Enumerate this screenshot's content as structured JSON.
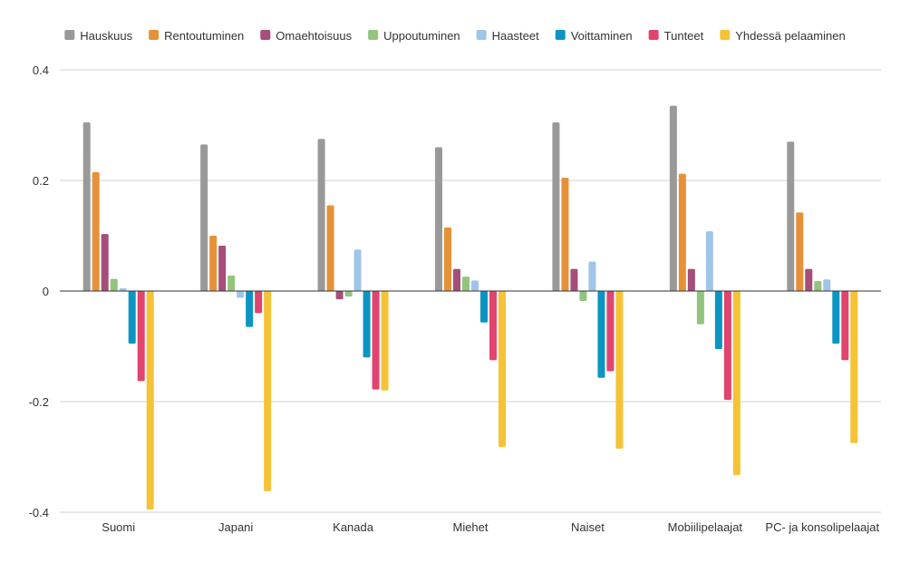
{
  "chart_data": {
    "type": "bar",
    "title": "",
    "xlabel": "",
    "ylabel": "",
    "ylim": [
      -0.4,
      0.4
    ],
    "yticks": [
      0.4,
      0.2,
      0,
      -0.2,
      -0.4
    ],
    "ytick_labels": [
      "0.4",
      "0.2",
      "0",
      "-0.2",
      "-0.4"
    ],
    "grid": true,
    "legend_position": "top",
    "categories": [
      "Suomi",
      "Japani",
      "Kanada",
      "Miehet",
      "Naiset",
      "Mobiilipelaajat",
      "PC- ja konsolipelaajat"
    ],
    "series": [
      {
        "name": "Hauskuus",
        "color": "#999999",
        "values": [
          0.305,
          0.265,
          0.275,
          0.26,
          0.305,
          0.335,
          0.27
        ]
      },
      {
        "name": "Rentoutuminen",
        "color": "#e69138",
        "values": [
          0.215,
          0.1,
          0.155,
          0.115,
          0.205,
          0.212,
          0.142
        ]
      },
      {
        "name": "Omaehtoisuus",
        "color": "#a64d79",
        "values": [
          0.103,
          0.082,
          -0.015,
          0.04,
          0.04,
          0.04,
          0.04
        ]
      },
      {
        "name": "Uppoutuminen",
        "color": "#93c47d",
        "values": [
          0.022,
          0.028,
          -0.01,
          0.026,
          -0.018,
          -0.06,
          0.018
        ]
      },
      {
        "name": "Haasteet",
        "color": "#9fc5e8",
        "values": [
          0.005,
          -0.012,
          0.075,
          0.019,
          0.053,
          0.108,
          0.021
        ]
      },
      {
        "name": "Voittaminen",
        "color": "#0b95c2",
        "values": [
          -0.095,
          -0.065,
          -0.12,
          -0.057,
          -0.157,
          -0.105,
          -0.095
        ]
      },
      {
        "name": "Tunteet",
        "color": "#e0446f",
        "values": [
          -0.163,
          -0.04,
          -0.178,
          -0.125,
          -0.145,
          -0.197,
          -0.125
        ]
      },
      {
        "name": "Yhdessä pelaaminen",
        "color": "#f6c337",
        "values": [
          -0.395,
          -0.362,
          -0.18,
          -0.282,
          -0.285,
          -0.333,
          -0.275
        ]
      }
    ]
  }
}
